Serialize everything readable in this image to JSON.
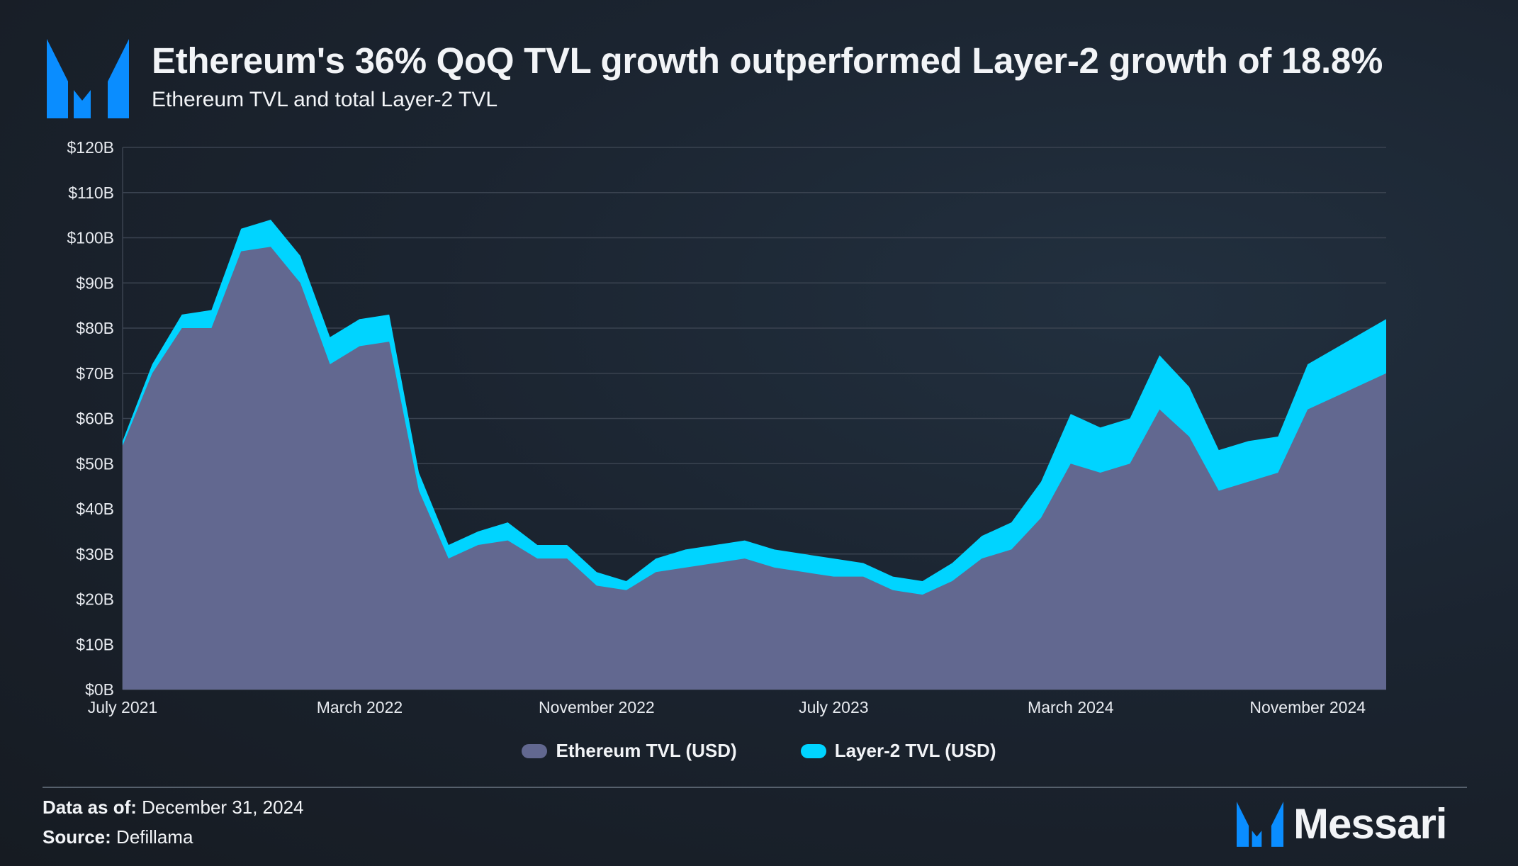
{
  "header": {
    "title": "Ethereum's 36% QoQ TVL growth outperformed Layer-2 growth of 18.8%",
    "subtitle": "Ethereum TVL and total Layer-2 TVL"
  },
  "footer": {
    "data_as_of_label": "Data as of:",
    "data_as_of_value": "December 31, 2024",
    "source_label": "Source:",
    "source_value": "Defillama",
    "brand": "Messari"
  },
  "colors": {
    "ethereum": "#626890",
    "layer2": "#00d4ff",
    "brand": "#0a8dff"
  },
  "chart_data": {
    "type": "area",
    "stacked": true,
    "title": "Ethereum TVL and total Layer-2 TVL",
    "xlabel": "",
    "ylabel": "",
    "ylim": [
      0,
      120
    ],
    "y_unit": "USD billions",
    "y_ticks": [
      "$0B",
      "$10B",
      "$20B",
      "$30B",
      "$40B",
      "$50B",
      "$60B",
      "$70B",
      "$80B",
      "$90B",
      "$100B",
      "$110B",
      "$120B"
    ],
    "x_ticks": [
      "July 2021",
      "March 2022",
      "November 2022",
      "July 2023",
      "March 2024",
      "November 2024"
    ],
    "grid": true,
    "legend_position": "bottom",
    "x": [
      "2021-07",
      "2021-08",
      "2021-09",
      "2021-10",
      "2021-11",
      "2021-12",
      "2022-01",
      "2022-02",
      "2022-03",
      "2022-04",
      "2022-05",
      "2022-06",
      "2022-07",
      "2022-08",
      "2022-09",
      "2022-10",
      "2022-11",
      "2022-12",
      "2023-01",
      "2023-02",
      "2023-03",
      "2023-04",
      "2023-05",
      "2023-06",
      "2023-07",
      "2023-08",
      "2023-09",
      "2023-10",
      "2023-11",
      "2023-12",
      "2024-01",
      "2024-02",
      "2024-03",
      "2024-04",
      "2024-05",
      "2024-06",
      "2024-07",
      "2024-08",
      "2024-09",
      "2024-10",
      "2024-11",
      "2024-12"
    ],
    "series": [
      {
        "name": "Ethereum TVL (USD)",
        "values": [
          54,
          70,
          80,
          80,
          97,
          98,
          90,
          72,
          76,
          77,
          44,
          29,
          32,
          33,
          29,
          29,
          23,
          22,
          26,
          27,
          28,
          29,
          27,
          26,
          25,
          25,
          22,
          21,
          24,
          29,
          31,
          38,
          50,
          48,
          50,
          62,
          56,
          44,
          46,
          48,
          62,
          70
        ]
      },
      {
        "name": "Layer-2 TVL (USD)",
        "values": [
          1,
          2,
          3,
          4,
          5,
          6,
          6,
          6,
          6,
          6,
          4,
          3,
          3,
          4,
          3,
          3,
          3,
          2,
          3,
          4,
          4,
          4,
          4,
          4,
          4,
          3,
          3,
          3,
          4,
          5,
          6,
          8,
          11,
          10,
          10,
          12,
          11,
          9,
          9,
          8,
          10,
          12
        ]
      }
    ]
  }
}
